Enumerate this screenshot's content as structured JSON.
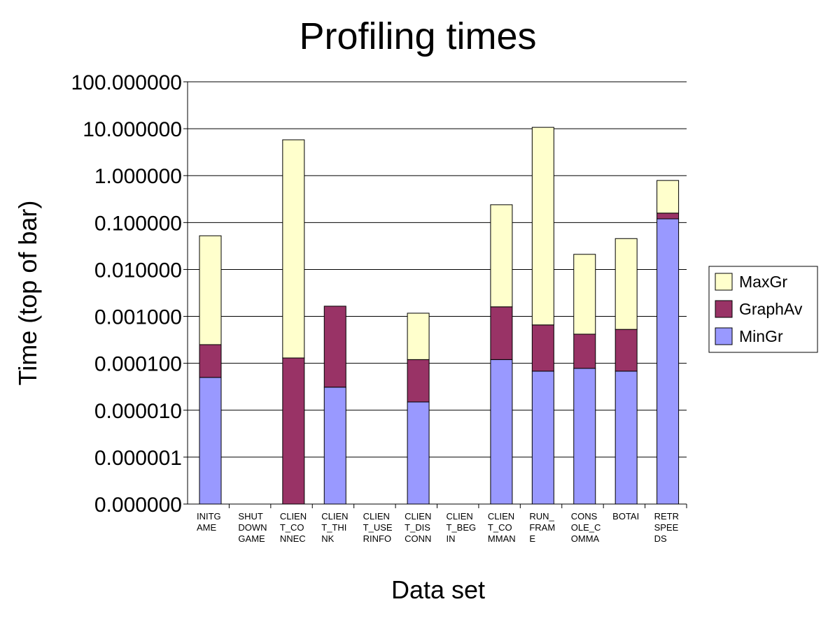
{
  "chart_data": {
    "type": "bar",
    "stacked": true,
    "title": "Profiling times",
    "y_label": "Time (top of bar)",
    "x_label": "Data set",
    "yscale": "log",
    "grid": true,
    "legend": "right",
    "categories": [
      [
        "INITG",
        "AME"
      ],
      [
        "SHUT",
        "DOWN",
        "GAME"
      ],
      [
        "CLIEN",
        "T_CO",
        "NNEC"
      ],
      [
        "CLIEN",
        "T_THI",
        "NK"
      ],
      [
        "CLIEN",
        "T_USE",
        "RINFO"
      ],
      [
        "CLIEN",
        "T_DIS",
        "CONN"
      ],
      [
        "CLIEN",
        "T_BEG",
        "IN"
      ],
      [
        "CLIEN",
        "T_CO",
        "MMAN"
      ],
      [
        "RUN_",
        "FRAM",
        "E"
      ],
      [
        "CONS",
        "OLE_C",
        "OMMA"
      ],
      [
        "BOTAI"
      ],
      [
        "RETR",
        "SPEE",
        "DS"
      ]
    ],
    "series": [
      {
        "name": "MinGr",
        "color": "#9999ff",
        "values": [
          5e-05,
          null,
          null,
          3.1e-05,
          null,
          1.5e-05,
          null,
          0.00012,
          6.8e-05,
          7.8e-05,
          6.8e-05,
          0.12
        ]
      },
      {
        "name": "GraphAv",
        "color": "#993366",
        "values": [
          0.0002,
          null,
          0.00013,
          0.00162,
          null,
          0.000105,
          null,
          0.00148,
          0.00059,
          0.00034,
          0.00046,
          0.039
        ]
      },
      {
        "name": "MaxGr",
        "color": "#ffffcc",
        "values": [
          0.052,
          null,
          5.8,
          null,
          null,
          0.00105,
          null,
          0.238,
          10.7,
          0.0206,
          0.045,
          0.63
        ]
      }
    ],
    "ylim": [
      1e-07,
      100
    ],
    "yticks": [
      {
        "value": 1e-07,
        "label": "0.000000"
      },
      {
        "value": 1e-06,
        "label": "0.000001"
      },
      {
        "value": 1e-05,
        "label": "0.000010"
      },
      {
        "value": 0.0001,
        "label": "0.000100"
      },
      {
        "value": 0.001,
        "label": "0.001000"
      },
      {
        "value": 0.01,
        "label": "0.010000"
      },
      {
        "value": 0.1,
        "label": "0.100000"
      },
      {
        "value": 1,
        "label": "1.000000"
      },
      {
        "value": 10,
        "label": "10.000000"
      },
      {
        "value": 100,
        "label": "100.000000"
      }
    ]
  }
}
